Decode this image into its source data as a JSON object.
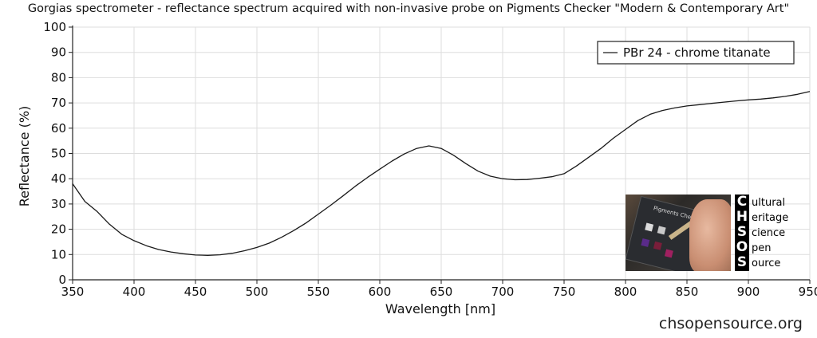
{
  "title": "Gorgias spectrometer - reflectance spectrum acquired with non-invasive probe on Pigments Checker \"Modern & Contemporary Art\"",
  "credit": "chsopensource.org",
  "logo": {
    "letters": [
      "C",
      "H",
      "S",
      "O",
      "S"
    ],
    "words": [
      "ultural",
      "eritage",
      "cience",
      "pen",
      "ource"
    ],
    "photo_card_text": "Pigments Checker"
  },
  "chart_data": {
    "type": "line",
    "xlabel": "Wavelength [nm]",
    "ylabel": "Reflectance (%)",
    "xlim": [
      350,
      950
    ],
    "ylim": [
      0,
      100
    ],
    "xticks": [
      350,
      400,
      450,
      500,
      550,
      600,
      650,
      700,
      750,
      800,
      850,
      900,
      950
    ],
    "yticks": [
      0,
      10,
      20,
      30,
      40,
      50,
      60,
      70,
      80,
      90,
      100
    ],
    "grid": true,
    "legend_position": "top-right",
    "series": [
      {
        "name": "PBr 24 - chrome titanate",
        "color": "#1a1a1a",
        "x": [
          350,
          360,
          370,
          380,
          390,
          400,
          410,
          420,
          430,
          440,
          450,
          460,
          470,
          480,
          490,
          500,
          510,
          520,
          530,
          540,
          550,
          560,
          570,
          580,
          590,
          600,
          610,
          620,
          630,
          640,
          650,
          660,
          670,
          680,
          690,
          700,
          710,
          720,
          730,
          740,
          750,
          760,
          770,
          780,
          790,
          800,
          810,
          820,
          830,
          840,
          850,
          860,
          870,
          880,
          890,
          900,
          910,
          920,
          930,
          940,
          950
        ],
        "y": [
          38,
          31,
          27,
          22,
          18,
          15.5,
          13.5,
          12,
          11,
          10.3,
          9.8,
          9.7,
          9.9,
          10.5,
          11.5,
          12.8,
          14.5,
          16.8,
          19.5,
          22.5,
          26,
          29.5,
          33.2,
          37,
          40.5,
          43.8,
          47,
          49.8,
          52,
          53,
          52,
          49.3,
          46,
          43,
          41,
          40,
          39.6,
          39.7,
          40.2,
          40.8,
          42,
          45,
          48.5,
          52,
          56,
          59.5,
          63,
          65.5,
          67,
          68,
          68.8,
          69.3,
          69.8,
          70.3,
          70.8,
          71.2,
          71.5,
          72,
          72.6,
          73.4,
          74.5
        ]
      }
    ]
  }
}
